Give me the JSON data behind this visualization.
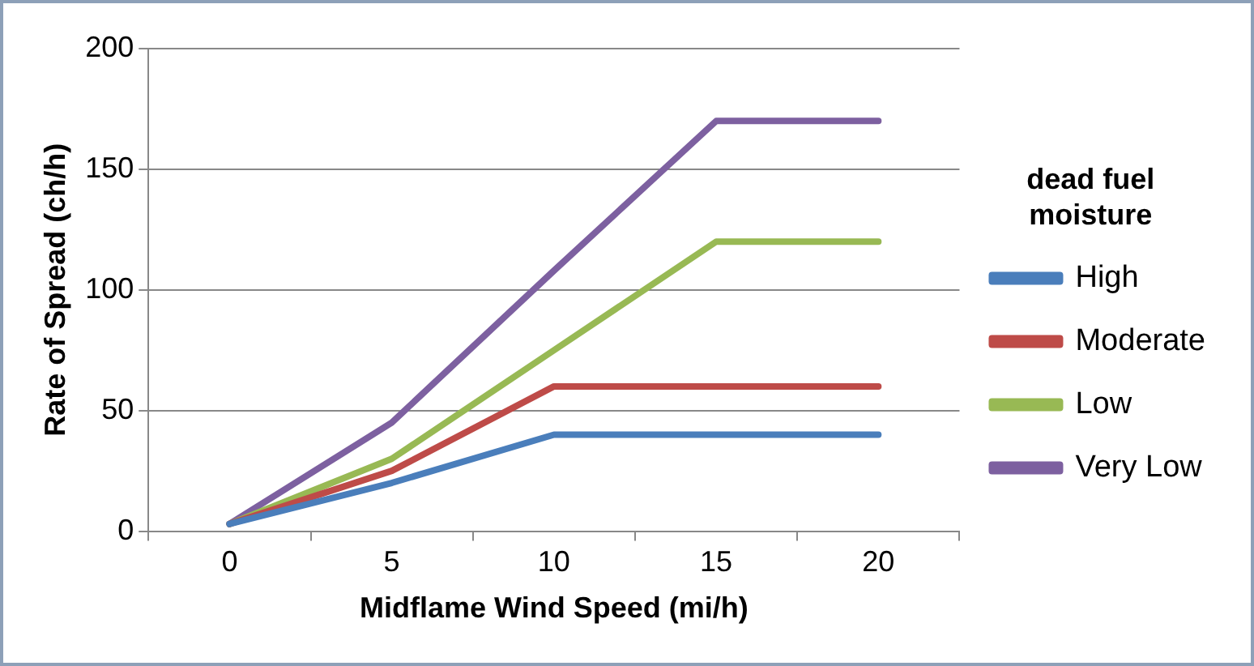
{
  "chart_data": {
    "type": "line",
    "xlabel": "Midflame Wind Speed (mi/h)",
    "ylabel": "Rate of Spread (ch/h)",
    "legend_title": "dead fuel moisture",
    "legend": "right",
    "grid": "y",
    "marker": "none",
    "line_style": "solid",
    "categories": [
      "0",
      "5",
      "10",
      "15",
      "20"
    ],
    "ylim": [
      0,
      200
    ],
    "yticks": [
      0,
      50,
      100,
      150,
      200
    ],
    "series": [
      {
        "name": "High",
        "color": "#4a7ebb",
        "values": [
          3,
          20,
          40,
          40,
          40
        ]
      },
      {
        "name": "Moderate",
        "color": "#be4b48",
        "values": [
          3,
          25,
          60,
          60,
          60
        ]
      },
      {
        "name": "Low",
        "color": "#98b954",
        "values": [
          3,
          30,
          75,
          120,
          120
        ]
      },
      {
        "name": "Very Low",
        "color": "#7d60a0",
        "values": [
          3,
          45,
          108,
          170,
          170
        ]
      }
    ]
  }
}
